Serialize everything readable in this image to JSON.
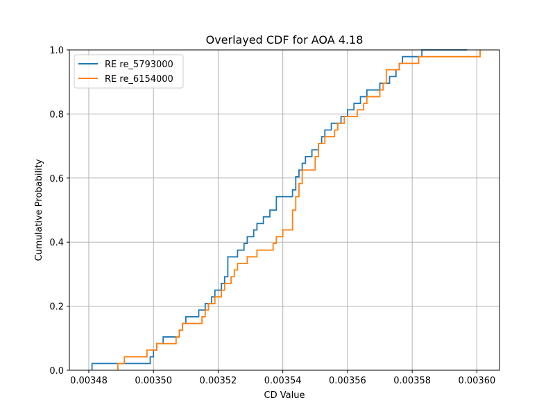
{
  "chart_data": {
    "type": "line",
    "title": "Overlayed CDF for AOA 4.18",
    "xlabel": "CD Value",
    "ylabel": "Cumulative Probability",
    "xlim": [
      0.003474,
      0.003607
    ],
    "ylim": [
      0,
      1
    ],
    "x_ticks": [
      0.00348,
      0.0035,
      0.00352,
      0.00354,
      0.00356,
      0.00358,
      0.0036
    ],
    "x_tick_labels": [
      "0.00348",
      "0.00350",
      "0.00352",
      "0.00354",
      "0.00356",
      "0.00358",
      "0.00360"
    ],
    "y_ticks": [
      0,
      0.2,
      0.4,
      0.6,
      0.8,
      1.0
    ],
    "y_tick_labels": [
      "0.0",
      "0.2",
      "0.4",
      "0.6",
      "0.8",
      "1.0"
    ],
    "grid": true,
    "legend_position": "top-left",
    "series": [
      {
        "name": "RE re_5793000",
        "color": "#1f77b4",
        "x": [
          0.003481,
          0.003499,
          0.0035,
          0.003501,
          0.003503,
          0.003508,
          0.003509,
          0.00351,
          0.003514,
          0.003516,
          0.003518,
          0.003519,
          0.003521,
          0.003522,
          0.003523,
          0.003526,
          0.003528,
          0.003529,
          0.003531,
          0.003532,
          0.003534,
          0.003536,
          0.003538,
          0.003543,
          0.003544,
          0.003545,
          0.003546,
          0.003547,
          0.003549,
          0.003551,
          0.003552,
          0.003553,
          0.003555,
          0.003558,
          0.00356,
          0.003562,
          0.003564,
          0.003566,
          0.00357,
          0.003573,
          0.003575,
          0.003576,
          0.003577,
          0.003583,
          0.003595,
          0.003597
        ],
        "y": [
          0.021,
          0.042,
          0.063,
          0.083,
          0.104,
          0.125,
          0.146,
          0.167,
          0.188,
          0.208,
          0.229,
          0.25,
          0.271,
          0.292,
          0.354,
          0.375,
          0.396,
          0.417,
          0.438,
          0.458,
          0.479,
          0.5,
          0.542,
          0.563,
          0.604,
          0.625,
          0.646,
          0.667,
          0.688,
          0.708,
          0.729,
          0.75,
          0.771,
          0.792,
          0.813,
          0.833,
          0.854,
          0.875,
          0.896,
          0.917,
          0.938,
          0.958,
          0.979,
          1.0,
          1.0,
          1.0
        ]
      },
      {
        "name": "RE re_6154000",
        "color": "#ff7f0e",
        "x": [
          0.003489,
          0.003491,
          0.003498,
          0.003501,
          0.003507,
          0.003508,
          0.003509,
          0.003515,
          0.003516,
          0.003517,
          0.003519,
          0.003521,
          0.003522,
          0.003524,
          0.003525,
          0.003526,
          0.003529,
          0.003532,
          0.003537,
          0.003538,
          0.00354,
          0.003543,
          0.003544,
          0.003545,
          0.003546,
          0.00355,
          0.003551,
          0.003553,
          0.003556,
          0.003557,
          0.003559,
          0.003563,
          0.003565,
          0.003566,
          0.00357,
          0.003571,
          0.003572,
          0.003576,
          0.003579,
          0.003582,
          0.003601
        ],
        "y": [
          0.021,
          0.042,
          0.063,
          0.083,
          0.104,
          0.125,
          0.146,
          0.167,
          0.188,
          0.208,
          0.229,
          0.25,
          0.271,
          0.292,
          0.313,
          0.333,
          0.354,
          0.375,
          0.396,
          0.417,
          0.438,
          0.5,
          0.542,
          0.583,
          0.625,
          0.667,
          0.708,
          0.729,
          0.75,
          0.771,
          0.792,
          0.813,
          0.833,
          0.854,
          0.875,
          0.896,
          0.938,
          0.958,
          0.958,
          0.979,
          1.0
        ]
      }
    ]
  }
}
